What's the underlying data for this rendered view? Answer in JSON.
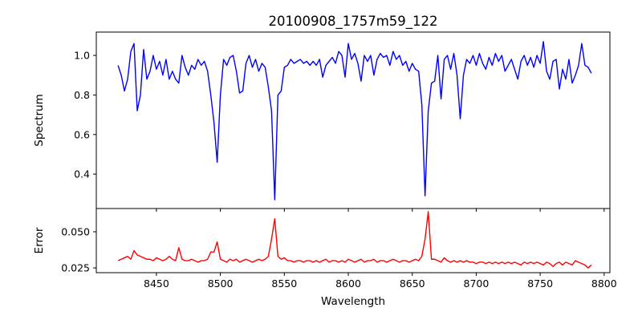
{
  "chart_data": [
    {
      "type": "line",
      "title": "20100908_1757m59_122",
      "xlabel": "",
      "ylabel": "Spectrum",
      "xlim": [
        8403,
        8804.5
      ],
      "ylim": [
        0.226,
        1.118
      ],
      "xticks": [
        8450,
        8500,
        8550,
        8600,
        8650,
        8700,
        8750,
        8800
      ],
      "yticks": [
        0.4,
        0.6,
        0.8,
        1.0
      ],
      "ytick_labels": [
        "0.4",
        "0.6",
        "0.8",
        "1.0"
      ],
      "grid": false,
      "color": "#0000ff",
      "x_start": 8420,
      "x_step": 2.5,
      "values": [
        0.95,
        0.9,
        0.82,
        0.88,
        1.02,
        1.06,
        0.72,
        0.8,
        1.03,
        0.88,
        0.92,
        1.0,
        0.93,
        0.97,
        0.9,
        0.98,
        0.88,
        0.92,
        0.88,
        0.86,
        1.0,
        0.94,
        0.9,
        0.95,
        0.93,
        0.98,
        0.95,
        0.97,
        0.92,
        0.8,
        0.66,
        0.46,
        0.8,
        0.98,
        0.95,
        0.99,
        1.0,
        0.92,
        0.81,
        0.82,
        0.96,
        1.0,
        0.94,
        0.98,
        0.92,
        0.96,
        0.94,
        0.84,
        0.72,
        0.27,
        0.8,
        0.82,
        0.94,
        0.95,
        0.98,
        0.96,
        0.97,
        0.98,
        0.96,
        0.97,
        0.95,
        0.97,
        0.95,
        0.98,
        0.89,
        0.95,
        0.97,
        0.99,
        0.96,
        1.02,
        1.0,
        0.89,
        1.06,
        0.98,
        1.01,
        0.96,
        0.87,
        1.0,
        0.97,
        1.0,
        0.9,
        0.98,
        1.01,
        0.99,
        1.0,
        0.95,
        1.02,
        0.98,
        1.0,
        0.95,
        0.97,
        0.92,
        0.96,
        0.93,
        0.92,
        0.75,
        0.29,
        0.72,
        0.86,
        0.87,
        1.0,
        0.78,
        0.98,
        1.0,
        0.93,
        1.01,
        0.9,
        0.68,
        0.9,
        0.98,
        0.96,
        1.0,
        0.95,
        1.01,
        0.96,
        0.93,
        0.99,
        0.95,
        1.01,
        0.97,
        1.0,
        0.92,
        0.95,
        0.98,
        0.93,
        0.88,
        0.97,
        1.0,
        0.95,
        0.99,
        0.94,
        1.0,
        0.96,
        1.07,
        0.92,
        0.88,
        0.97,
        0.98,
        0.83,
        0.93,
        0.88,
        0.98,
        0.86,
        0.9,
        0.95,
        1.06,
        0.95,
        0.94,
        0.91
      ]
    },
    {
      "type": "line",
      "xlabel": "Wavelength",
      "ylabel": "Error",
      "xlim": [
        8403,
        8804.5
      ],
      "ylim": [
        0.0217,
        0.0661
      ],
      "xticks": [
        8450,
        8500,
        8550,
        8600,
        8650,
        8700,
        8750,
        8800
      ],
      "xtick_labels": [
        "8450",
        "8500",
        "8550",
        "8600",
        "8650",
        "8700",
        "8750",
        "8800"
      ],
      "yticks": [
        0.025,
        0.05
      ],
      "ytick_labels": [
        "0.025",
        "0.050"
      ],
      "grid": false,
      "color": "#ff0000",
      "x_start": 8420,
      "x_step": 2.5,
      "values": [
        0.03,
        0.031,
        0.032,
        0.033,
        0.031,
        0.037,
        0.034,
        0.033,
        0.032,
        0.031,
        0.031,
        0.03,
        0.032,
        0.031,
        0.03,
        0.031,
        0.033,
        0.031,
        0.03,
        0.039,
        0.031,
        0.03,
        0.03,
        0.031,
        0.03,
        0.029,
        0.03,
        0.03,
        0.031,
        0.036,
        0.036,
        0.043,
        0.031,
        0.03,
        0.029,
        0.031,
        0.03,
        0.031,
        0.029,
        0.03,
        0.031,
        0.03,
        0.029,
        0.03,
        0.031,
        0.03,
        0.031,
        0.033,
        0.045,
        0.059,
        0.033,
        0.031,
        0.032,
        0.03,
        0.03,
        0.029,
        0.03,
        0.03,
        0.029,
        0.03,
        0.03,
        0.029,
        0.03,
        0.029,
        0.03,
        0.031,
        0.029,
        0.03,
        0.03,
        0.029,
        0.03,
        0.029,
        0.031,
        0.03,
        0.029,
        0.03,
        0.031,
        0.029,
        0.03,
        0.03,
        0.031,
        0.029,
        0.03,
        0.03,
        0.029,
        0.03,
        0.031,
        0.03,
        0.029,
        0.03,
        0.03,
        0.029,
        0.03,
        0.031,
        0.03,
        0.033,
        0.045,
        0.064,
        0.031,
        0.031,
        0.03,
        0.029,
        0.032,
        0.03,
        0.029,
        0.03,
        0.029,
        0.03,
        0.029,
        0.03,
        0.029,
        0.029,
        0.028,
        0.029,
        0.029,
        0.028,
        0.029,
        0.028,
        0.029,
        0.028,
        0.029,
        0.028,
        0.029,
        0.028,
        0.029,
        0.028,
        0.027,
        0.029,
        0.028,
        0.029,
        0.028,
        0.029,
        0.028,
        0.027,
        0.029,
        0.028,
        0.026,
        0.028,
        0.029,
        0.027,
        0.029,
        0.028,
        0.027,
        0.03,
        0.029,
        0.028,
        0.027,
        0.025,
        0.027
      ]
    }
  ]
}
